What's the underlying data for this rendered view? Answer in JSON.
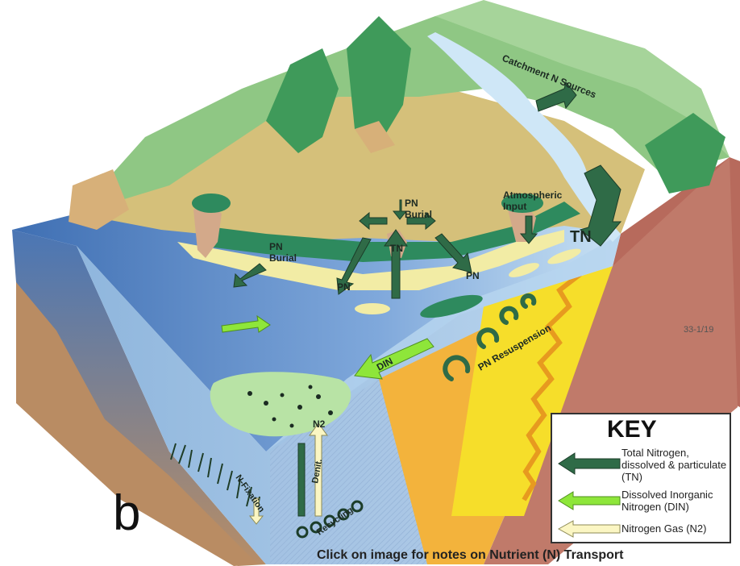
{
  "diagram": {
    "panel_letter": "b",
    "figure_number": "33-1/19",
    "caption": "Click on image for notes on Nutrient (N) Transport",
    "labels": {
      "catchment": "Catchment N Sources",
      "atmospheric_1": "Atmospheric",
      "atmospheric_2": "Input",
      "tn_main": "TN",
      "tn_small": "TN",
      "pn_burial_top_1": "PN",
      "pn_burial_top_2": "Burial",
      "pn_burial_left_1": "PN",
      "pn_burial_left_2": "Burial",
      "pn_left": "PN",
      "pn_right": "PN",
      "din": "DIN",
      "pn_resuspension": "PN Resuspension",
      "n2": "N2",
      "denit": "Denit.",
      "n_fixation": "N-Fixation",
      "recycling": "Recycling"
    }
  },
  "key": {
    "title": "KEY",
    "items": [
      {
        "text": "Total Nitrogen, dissolved & particulate (TN)",
        "color": "#2f6b47"
      },
      {
        "text": "Dissolved Inorganic Nitrogen (DIN)",
        "color": "#8ee63a"
      },
      {
        "text": "Nitrogen Gas (N2)",
        "color": "#fbf6c3"
      }
    ]
  }
}
